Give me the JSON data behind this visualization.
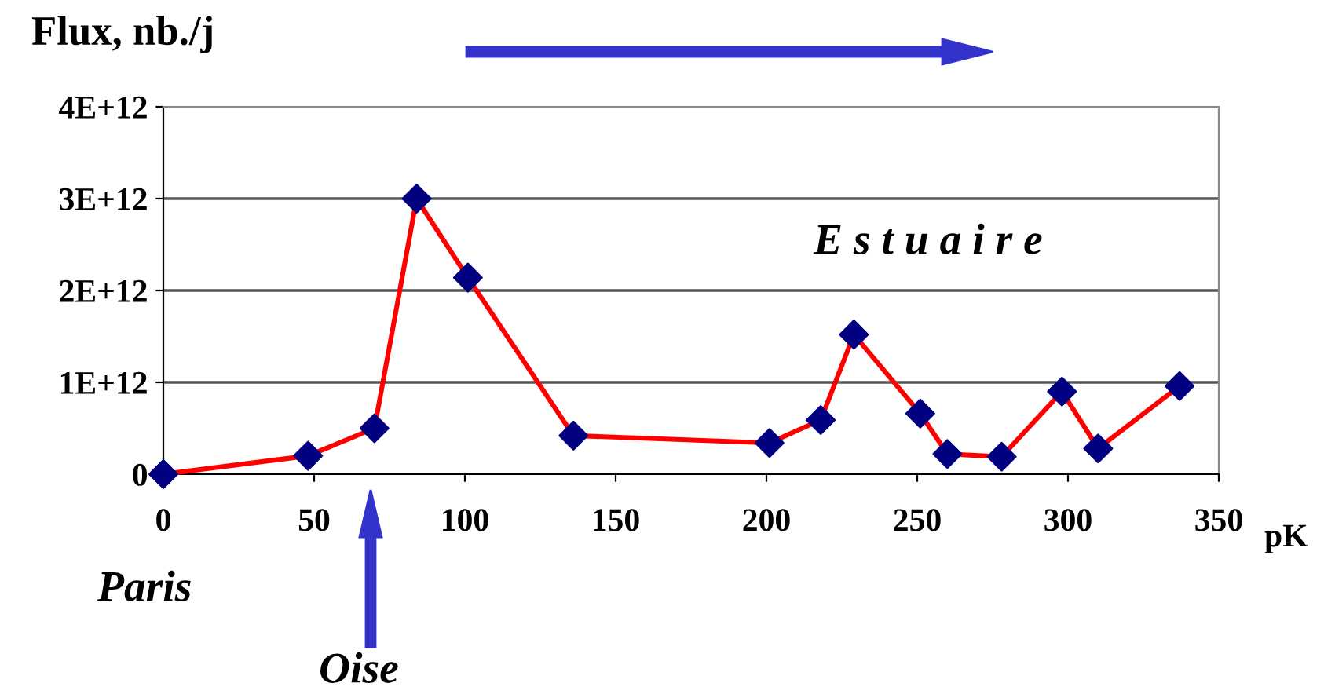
{
  "chart_data": {
    "type": "line",
    "ylabel": "Flux, nb./j",
    "xlabel": "pK",
    "x": [
      0,
      48,
      70,
      84,
      101,
      136,
      201,
      218,
      229,
      251,
      260,
      278,
      298,
      310,
      337
    ],
    "series": [
      {
        "color": "#ff0000",
        "colors": [
          "#000080",
          "#000080",
          "#000080",
          "#000080",
          "#000080",
          "#000080",
          "#000080",
          "#000080",
          "#000080",
          "#000080",
          "#000080",
          "#000080",
          "#000080",
          "#000080",
          "#000080"
        ],
        "values": [
          0,
          200000000000.0,
          500000000000.0,
          3000000000000.0,
          2140000000000.0,
          420000000000.0,
          340000000000.0,
          590000000000.0,
          1520000000000.0,
          660000000000.0,
          220000000000.0,
          190000000000.0,
          900000000000.0,
          280000000000.0,
          960000000000.0
        ]
      }
    ],
    "marker": "diamond",
    "xlim": [
      0,
      350
    ],
    "xticks": [
      0,
      50,
      100,
      150,
      200,
      250,
      300,
      350
    ],
    "ylim": [
      0,
      4000000000000.0
    ],
    "yticks": [
      {
        "value": 0,
        "label": "0"
      },
      {
        "value": 1000000000000.0,
        "label": "1E+12"
      },
      {
        "value": 2000000000000.0,
        "label": "2E+12"
      },
      {
        "value": 3000000000000.0,
        "label": "3E+12"
      },
      {
        "value": 4000000000000.0,
        "label": "4E+12"
      }
    ],
    "grid": "y",
    "annotations": [
      "E s t u a i r e",
      "Paris",
      "Oise"
    ]
  }
}
